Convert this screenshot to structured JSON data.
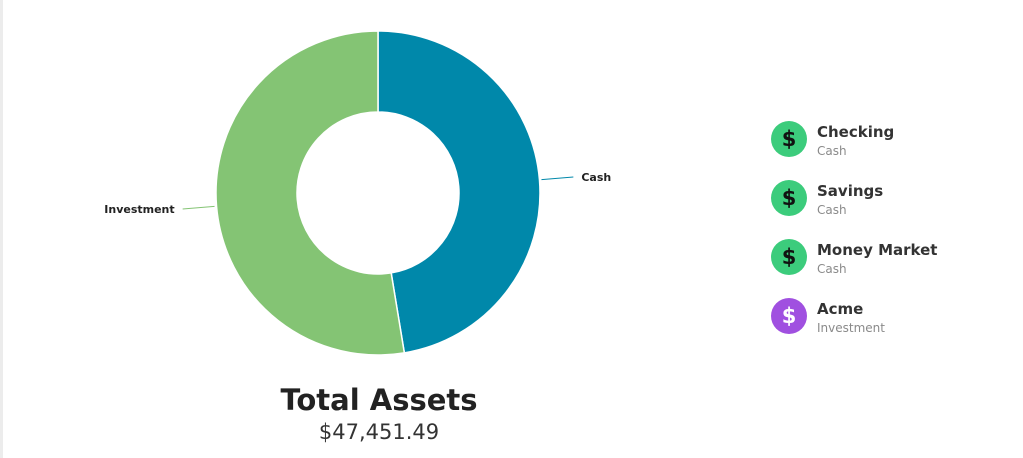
{
  "chart_data": {
    "type": "pie",
    "variant": "donut",
    "slices": [
      {
        "label": "Cash",
        "value": 47.4,
        "color": "#0088aa"
      },
      {
        "label": "Investment",
        "value": 52.6,
        "color": "#84c474"
      }
    ]
  },
  "total": {
    "title": "Total Assets",
    "value": "$47,451.49"
  },
  "legend": {
    "items": [
      {
        "name": "Checking",
        "type": "Cash",
        "icon": "dollar-icon",
        "color": "#3ccc7c"
      },
      {
        "name": "Savings",
        "type": "Cash",
        "icon": "dollar-icon",
        "color": "#3ccc7c"
      },
      {
        "name": "Money Market",
        "type": "Cash",
        "icon": "dollar-icon",
        "color": "#3ccc7c"
      },
      {
        "name": "Acme",
        "type": "Investment",
        "icon": "dollar-icon",
        "color": "#a050e0"
      }
    ],
    "icon_glyph": "$"
  }
}
